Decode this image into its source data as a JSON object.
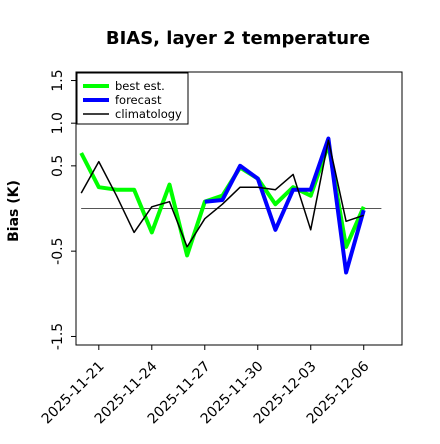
{
  "chart_data": {
    "type": "line",
    "title": "BIAS, layer 2 temperature",
    "xlabel": "",
    "ylabel": "Bias (K)",
    "ylim": [
      -1.6,
      1.6
    ],
    "yticks": [
      -1.5,
      -0.5,
      0.5,
      1.0,
      1.5
    ],
    "ytick_labels": [
      "-1.5",
      "-0.5",
      "0.5",
      "1.0",
      "1.5"
    ],
    "xlim": [
      "2025-11-19T17:00",
      "2025-12-08T04:00"
    ],
    "xticks": [
      "2025-11-21",
      "2025-11-24",
      "2025-11-27",
      "2025-11-30",
      "2025-12-03",
      "2025-12-06"
    ],
    "xtick_labels": [
      "2025-11-21",
      "2025-11-24",
      "2025-11-27",
      "2025-11-30",
      "2025-12-03",
      "2025-12-06"
    ],
    "xtick_colors": [
      "#000000",
      "#000000",
      "#228b22",
      "#000000",
      "#000000",
      "#000000"
    ],
    "reference_line": 0,
    "legend_position": "top-left",
    "grid": false,
    "series": [
      {
        "name": "best est.",
        "color": "#00ff00",
        "width": 4,
        "x": [
          "2025-11-20",
          "2025-11-21",
          "2025-11-22",
          "2025-11-23",
          "2025-11-24",
          "2025-11-25",
          "2025-11-26",
          "2025-11-27",
          "2025-11-28",
          "2025-11-29",
          "2025-11-30",
          "2025-12-01",
          "2025-12-02",
          "2025-12-03",
          "2025-12-04",
          "2025-12-05",
          "2025-12-06",
          "2025-12-07"
        ],
        "values": [
          0.65,
          0.25,
          0.22,
          0.22,
          -0.28,
          0.28,
          -0.55,
          0.08,
          0.15,
          0.48,
          0.35,
          0.05,
          0.25,
          0.15,
          0.75,
          -0.45,
          0.02,
          null
        ]
      },
      {
        "name": "forecast",
        "color": "#0000ff",
        "width": 4,
        "x": [
          "2025-11-20",
          "2025-11-21",
          "2025-11-22",
          "2025-11-23",
          "2025-11-24",
          "2025-11-25",
          "2025-11-26",
          "2025-11-27",
          "2025-11-28",
          "2025-11-29",
          "2025-11-30",
          "2025-12-01",
          "2025-12-02",
          "2025-12-03",
          "2025-12-04",
          "2025-12-05",
          "2025-12-06",
          "2025-12-07"
        ],
        "values": [
          null,
          null,
          null,
          null,
          null,
          null,
          null,
          0.08,
          0.1,
          0.5,
          0.35,
          -0.25,
          0.22,
          0.22,
          0.82,
          -0.75,
          -0.02,
          null
        ]
      },
      {
        "name": "climatology",
        "color": "#000000",
        "width": 1.5,
        "x": [
          "2025-11-20",
          "2025-11-21",
          "2025-11-22",
          "2025-11-23",
          "2025-11-24",
          "2025-11-25",
          "2025-11-26",
          "2025-11-27",
          "2025-11-28",
          "2025-11-29",
          "2025-11-30",
          "2025-12-01",
          "2025-12-02",
          "2025-12-03",
          "2025-12-04",
          "2025-12-05",
          "2025-12-06",
          "2025-12-07"
        ],
        "values": [
          0.18,
          0.55,
          0.15,
          -0.28,
          0.02,
          0.08,
          -0.45,
          -0.12,
          0.05,
          0.25,
          0.25,
          0.22,
          0.4,
          -0.25,
          0.8,
          -0.15,
          -0.08,
          null
        ]
      }
    ]
  }
}
